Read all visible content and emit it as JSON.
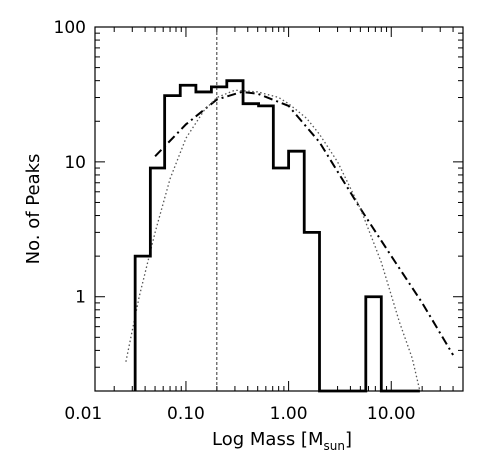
{
  "chart_data": {
    "type": "histogram",
    "title": "",
    "xlabel": "Log Mass [M",
    "xlabel_sub": "sun",
    "xlabel_close": "]",
    "ylabel": "No. of Peaks",
    "x_scale": "log",
    "y_scale": "log",
    "xlim": [
      0.013,
      50
    ],
    "ylim": [
      0.2,
      100
    ],
    "x_ticks": [
      {
        "value": 0.01,
        "label": "0.01"
      },
      {
        "value": 0.1,
        "label": "0.10"
      },
      {
        "value": 1,
        "label": "1.00"
      },
      {
        "value": 10,
        "label": "10.00"
      }
    ],
    "y_ticks": [
      {
        "value": 1,
        "label": "1"
      },
      {
        "value": 10,
        "label": "10"
      },
      {
        "value": 100,
        "label": "100"
      }
    ],
    "grid": false,
    "histogram": {
      "bin_edges": [
        0.032,
        0.045,
        0.062,
        0.088,
        0.125,
        0.177,
        0.25,
        0.36,
        0.51,
        0.71,
        1.0,
        1.42,
        2.0,
        2.85,
        4.0,
        5.65,
        8.0,
        13.0,
        19.0
      ],
      "counts": [
        2,
        9,
        31,
        37,
        33,
        36,
        40,
        27,
        26,
        9,
        12,
        3,
        0,
        0,
        0,
        1,
        0,
        0
      ]
    },
    "reference_line": {
      "x": 0.2,
      "style": "dashed"
    },
    "fits": [
      {
        "style": "dash-dot",
        "points": [
          [
            0.05,
            11
          ],
          [
            0.1,
            19
          ],
          [
            0.2,
            29
          ],
          [
            0.35,
            33
          ],
          [
            0.5,
            32
          ],
          [
            1.0,
            26
          ],
          [
            2.0,
            14
          ],
          [
            5.0,
            4.5
          ],
          [
            10.0,
            2.0
          ],
          [
            20.0,
            0.9
          ],
          [
            40.0,
            0.37
          ]
        ]
      },
      {
        "style": "dotted",
        "points": [
          [
            0.026,
            0.33
          ],
          [
            0.035,
            1.0
          ],
          [
            0.05,
            3.0
          ],
          [
            0.07,
            7.5
          ],
          [
            0.1,
            15
          ],
          [
            0.15,
            24
          ],
          [
            0.2,
            30
          ],
          [
            0.3,
            34
          ],
          [
            0.5,
            33
          ],
          [
            0.8,
            30
          ],
          [
            1.0,
            27
          ],
          [
            1.5,
            21
          ],
          [
            2.0,
            16
          ],
          [
            3.0,
            10
          ],
          [
            5.0,
            4.5
          ],
          [
            8.0,
            1.8
          ],
          [
            12.0,
            0.65
          ],
          [
            16.0,
            0.35
          ],
          [
            19.0,
            0.2
          ]
        ]
      }
    ]
  }
}
